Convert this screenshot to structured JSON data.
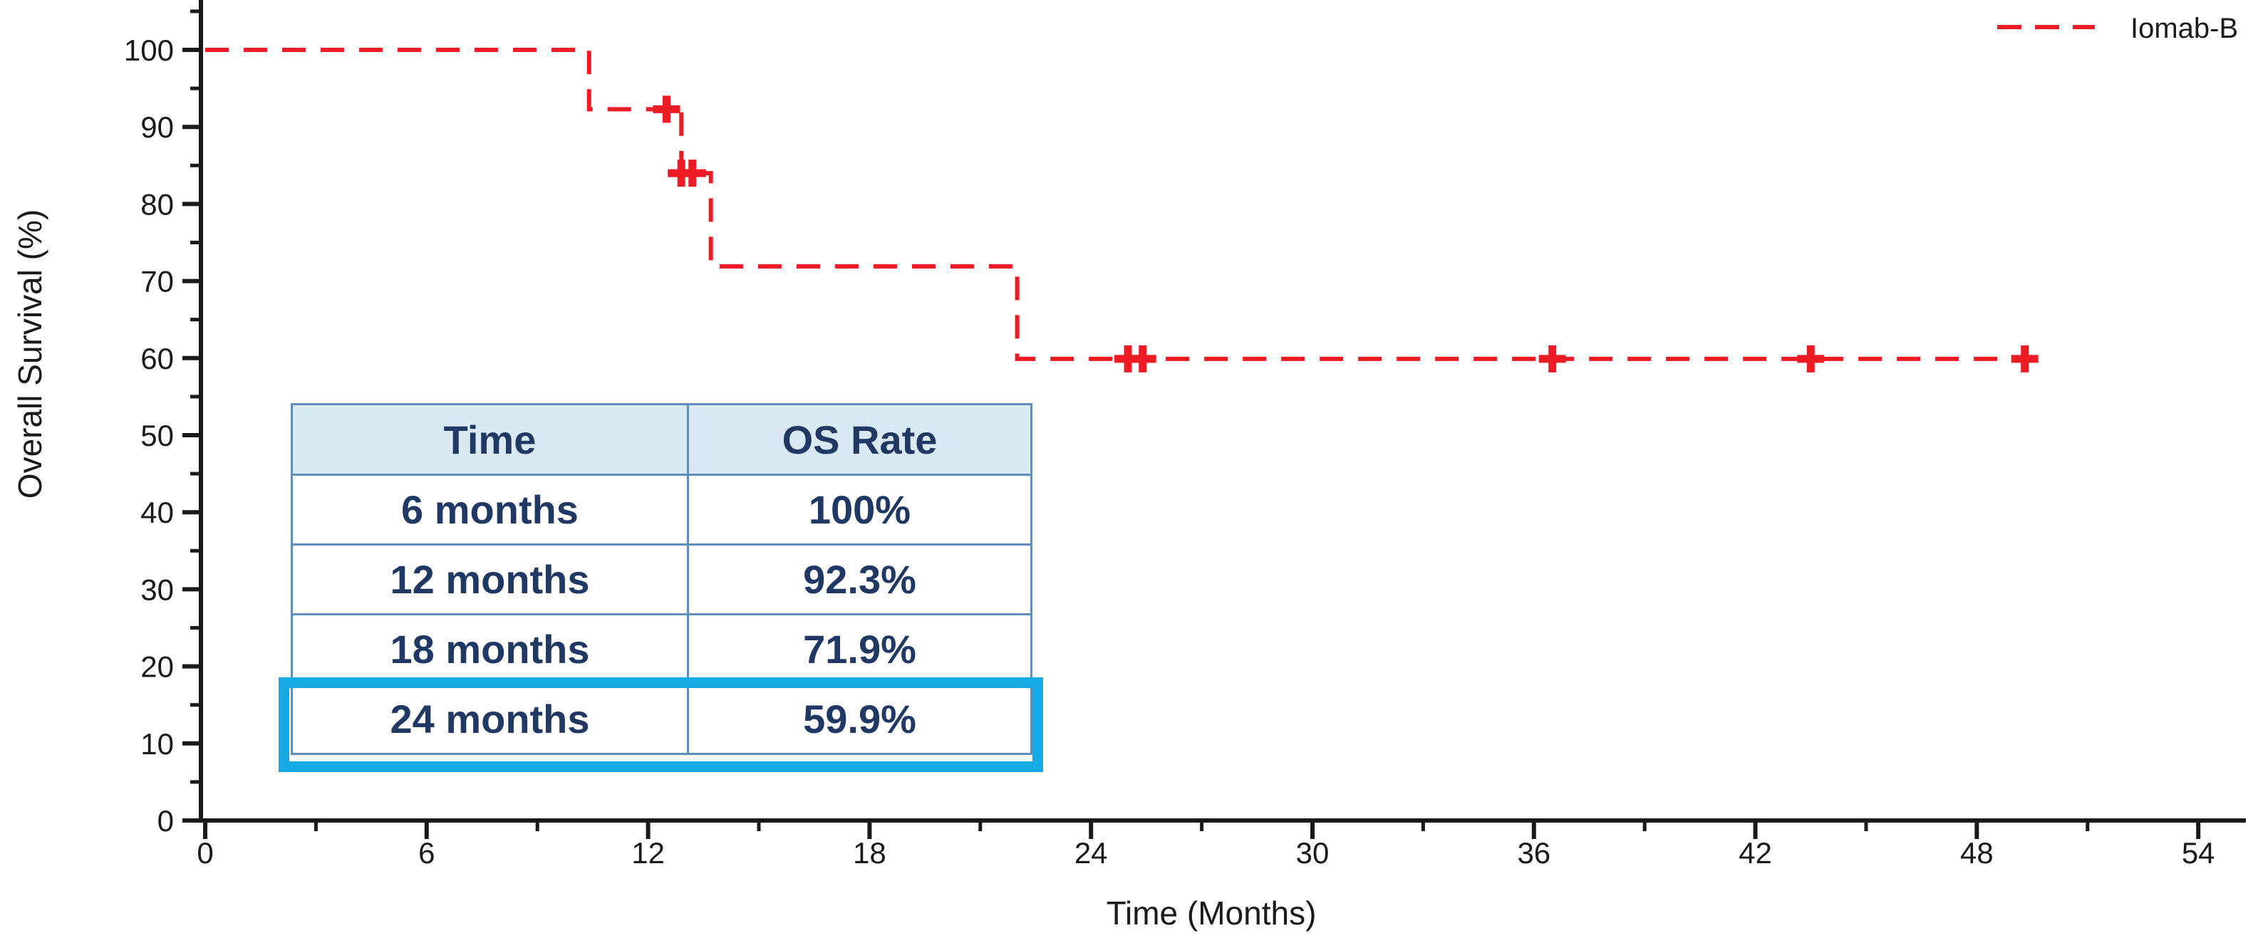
{
  "legend": {
    "label": "Iomab-B"
  },
  "axes": {
    "x": {
      "title": "Time (Months)",
      "min": 0,
      "max": 54,
      "major_tick_labels": [
        0,
        6,
        12,
        18,
        24,
        30,
        36,
        42,
        48,
        54
      ],
      "minor_tick_step": 3
    },
    "y": {
      "title": "Overall Survival (%)",
      "min": 0,
      "max": 100,
      "major_tick_labels": [
        0,
        10,
        20,
        30,
        40,
        50,
        60,
        70,
        80,
        90,
        100
      ],
      "minor_tick_step": 5
    }
  },
  "chart_data": {
    "type": "line",
    "subtype": "kaplan_meier_step",
    "title": "",
    "xlabel": "Time (Months)",
    "ylabel": "Overall Survival (%)",
    "xlim": [
      0,
      54
    ],
    "ylim": [
      0,
      100
    ],
    "grid": false,
    "legend_position": "top-right",
    "series": [
      {
        "name": "Iomab-B",
        "color": "#EC1C25",
        "line_style": "dashed",
        "steps": [
          {
            "from_month": 0,
            "to_month": 10.4,
            "survival_pct": 100
          },
          {
            "from_month": 10.4,
            "to_month": 12.9,
            "survival_pct": 92.3
          },
          {
            "from_month": 12.9,
            "to_month": 13.7,
            "survival_pct": 84
          },
          {
            "from_month": 13.7,
            "to_month": 22.0,
            "survival_pct": 71.9
          },
          {
            "from_month": 22.0,
            "to_month": 49.5,
            "survival_pct": 59.9
          }
        ],
        "censor_marks": [
          {
            "month": 12.5,
            "survival_pct": 92.3
          },
          {
            "month": 12.9,
            "survival_pct": 84
          },
          {
            "month": 13.2,
            "survival_pct": 84
          },
          {
            "month": 25.0,
            "survival_pct": 59.9
          },
          {
            "month": 25.4,
            "survival_pct": 59.9
          },
          {
            "month": 36.5,
            "survival_pct": 59.9
          },
          {
            "month": 43.5,
            "survival_pct": 59.9
          },
          {
            "month": 49.3,
            "survival_pct": 59.9
          }
        ]
      }
    ]
  },
  "table": {
    "headers": [
      "Time",
      "OS Rate"
    ],
    "rows": [
      {
        "time": "6 months",
        "os_rate": "100%"
      },
      {
        "time": "12 months",
        "os_rate": "92.3%"
      },
      {
        "time": "18 months",
        "os_rate": "71.9%"
      },
      {
        "time": "24 months",
        "os_rate": "59.9%"
      }
    ],
    "highlighted_row_index": 3
  },
  "colors": {
    "curve_red": "#EC1C25",
    "axis_black": "#1a1a1a",
    "table_header_bg": "#DAEAF5",
    "table_border": "#5E8FBC",
    "table_text": "#1F3864",
    "highlight_cyan": "#14A9E2"
  }
}
